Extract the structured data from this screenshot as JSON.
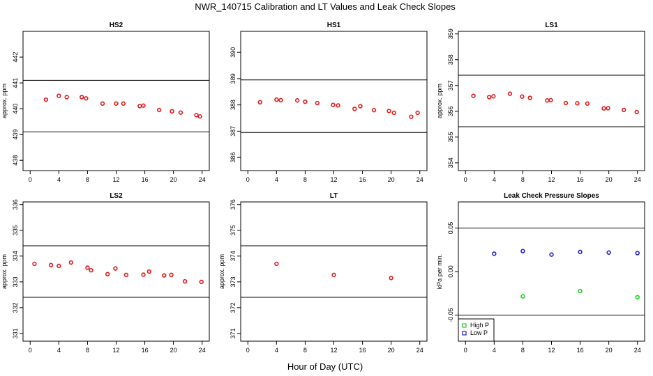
{
  "figure": {
    "title": "NWR_140715  Calibration and LT Values and Leak Check Slopes",
    "xlabel": "Hour of Day (UTC)"
  },
  "colors": {
    "calibration_points": "#e41a1c",
    "high_p": "#22cc22",
    "low_p": "#1f1fd6",
    "axes": "#000000"
  },
  "chart_data": [
    {
      "type": "scatter",
      "title": "HS2",
      "xlabel": "",
      "ylabel": "approx. ppm",
      "xlim": [
        -1,
        25
      ],
      "ylim": [
        437.6,
        443
      ],
      "x_ticks": [
        0,
        4,
        8,
        12,
        16,
        20,
        24
      ],
      "y_ticks": [
        438,
        439,
        440,
        441,
        442
      ],
      "reference_lines": [
        439.1,
        441.1
      ],
      "grid": false,
      "series": [
        {
          "x": [
            2.2,
            4.0,
            5.1,
            7.2,
            7.8,
            10.1,
            12.0,
            13.0,
            15.3,
            15.8,
            18.0,
            19.8,
            21.0,
            23.2,
            23.7
          ],
          "y": [
            440.35,
            440.5,
            440.45,
            440.45,
            440.4,
            440.2,
            440.2,
            440.2,
            440.1,
            440.12,
            439.95,
            439.9,
            439.85,
            439.75,
            439.7
          ]
        }
      ]
    },
    {
      "type": "scatter",
      "title": "HS1",
      "xlabel": "",
      "ylabel": "",
      "xlim": [
        -1,
        25
      ],
      "ylim": [
        385.5,
        390.8
      ],
      "x_ticks": [
        0,
        4,
        8,
        12,
        16,
        20,
        24
      ],
      "y_ticks": [
        386,
        387,
        388,
        389,
        390
      ],
      "reference_lines": [
        386.95,
        388.95
      ],
      "grid": false,
      "series": [
        {
          "x": [
            1.7,
            4.0,
            4.6,
            6.9,
            8.0,
            9.7,
            11.9,
            12.6,
            14.9,
            15.7,
            17.6,
            19.7,
            20.4,
            22.8,
            23.7
          ],
          "y": [
            388.1,
            388.2,
            388.18,
            388.17,
            388.12,
            388.07,
            388.0,
            387.98,
            387.85,
            387.95,
            387.8,
            387.77,
            387.7,
            387.55,
            387.7
          ]
        }
      ]
    },
    {
      "type": "scatter",
      "title": "LS1",
      "xlabel": "",
      "ylabel": "approx. ppm",
      "xlim": [
        -1,
        25
      ],
      "ylim": [
        353.7,
        359.1
      ],
      "x_ticks": [
        0,
        4,
        8,
        12,
        16,
        20,
        24
      ],
      "y_ticks": [
        354,
        355,
        356,
        357,
        358,
        359
      ],
      "reference_lines": [
        355.4,
        357.4
      ],
      "grid": false,
      "series": [
        {
          "x": [
            1.1,
            3.3,
            3.9,
            6.2,
            7.9,
            9.0,
            11.4,
            11.9,
            14.0,
            15.6,
            17.0,
            19.3,
            19.9,
            22.1,
            23.9
          ],
          "y": [
            356.6,
            356.55,
            356.58,
            356.68,
            356.57,
            356.52,
            356.42,
            356.43,
            356.32,
            356.31,
            356.3,
            356.11,
            356.12,
            356.05,
            355.97
          ]
        }
      ]
    },
    {
      "type": "scatter",
      "title": "LS2",
      "xlabel": "",
      "ylabel": "approx. ppm",
      "xlim": [
        -1,
        25
      ],
      "ylim": [
        330.7,
        336.1
      ],
      "x_ticks": [
        0,
        4,
        8,
        12,
        16,
        20,
        24
      ],
      "y_ticks": [
        331,
        332,
        333,
        334,
        335,
        336
      ],
      "reference_lines": [
        332.4,
        334.4
      ],
      "grid": false,
      "series": [
        {
          "x": [
            0.6,
            2.9,
            4.0,
            5.7,
            8.0,
            8.5,
            10.8,
            11.9,
            13.4,
            15.8,
            16.6,
            18.7,
            19.7,
            21.6,
            23.9
          ],
          "y": [
            333.7,
            333.65,
            333.62,
            333.75,
            333.55,
            333.45,
            333.3,
            333.52,
            333.27,
            333.28,
            333.4,
            333.25,
            333.27,
            333.02,
            333.0
          ]
        }
      ]
    },
    {
      "type": "scatter",
      "title": "LT",
      "xlabel": "",
      "ylabel": "approx. ppm",
      "xlim": [
        -1,
        25
      ],
      "ylim": [
        370.7,
        376.1
      ],
      "x_ticks": [
        0,
        4,
        8,
        12,
        16,
        20,
        24
      ],
      "y_ticks": [
        371,
        372,
        373,
        374,
        375,
        376
      ],
      "reference_lines": [
        372.4,
        374.4
      ],
      "grid": false,
      "series": [
        {
          "x": [
            4.0,
            12.0,
            20.0
          ],
          "y": [
            373.7,
            373.27,
            373.15
          ]
        }
      ]
    },
    {
      "type": "scatter",
      "title": "Leak Check Pressure Slopes",
      "xlabel": "",
      "ylabel": "kPa per min.",
      "xlim": [
        -1,
        25
      ],
      "ylim": [
        -0.08,
        0.08
      ],
      "x_ticks": [
        0,
        4,
        8,
        12,
        16,
        20,
        24
      ],
      "y_ticks": [
        -0.05,
        0.0,
        0.05
      ],
      "y_tick_labels": [
        "-0.05",
        "0.00",
        "0.05"
      ],
      "reference_lines": [
        -0.05,
        0.05
      ],
      "grid": false,
      "legend_position": "bottom-left",
      "series": [
        {
          "name": "High P",
          "x": [
            8,
            16,
            24
          ],
          "y": [
            -0.0285,
            -0.0225,
            -0.0295
          ]
        },
        {
          "name": "Low P",
          "x": [
            4,
            8,
            12,
            16,
            20,
            24
          ],
          "y": [
            0.0205,
            0.0235,
            0.0195,
            0.0225,
            0.0218,
            0.0212
          ]
        }
      ]
    }
  ]
}
